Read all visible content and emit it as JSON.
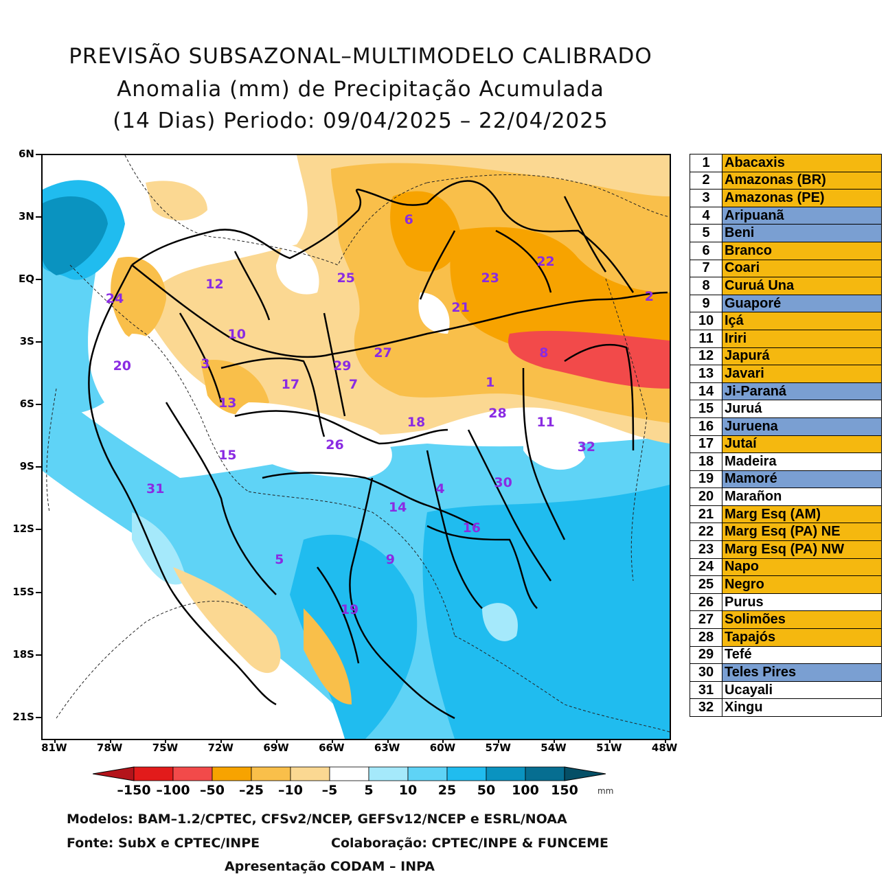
{
  "title": {
    "line1": "PREVISÃO SUBSAZONAL–MULTIMODELO CALIBRADO",
    "line2": "Anomalia (mm) de Precipitação Acumulada",
    "line3": "(14 Dias) Periodo: 09/04/2025 – 22/04/2025"
  },
  "axes": {
    "lat_labels": [
      "6N",
      "3N",
      "EQ",
      "3S",
      "6S",
      "9S",
      "12S",
      "15S",
      "18S",
      "21S"
    ],
    "lon_labels": [
      "81W",
      "78W",
      "75W",
      "72W",
      "69W",
      "66W",
      "63W",
      "60W",
      "57W",
      "54W",
      "51W",
      "48W"
    ]
  },
  "basin_labels": [
    {
      "num": "1",
      "lon": -57.5,
      "lat": -4.9
    },
    {
      "num": "2",
      "lon": -48.9,
      "lat": -0.8
    },
    {
      "num": "3",
      "lon": -72.9,
      "lat": -4.0
    },
    {
      "num": "4",
      "lon": -60.2,
      "lat": -10.0
    },
    {
      "num": "5",
      "lon": -68.9,
      "lat": -13.4
    },
    {
      "num": "6",
      "lon": -61.9,
      "lat": 2.9
    },
    {
      "num": "7",
      "lon": -64.9,
      "lat": -5.0
    },
    {
      "num": "8",
      "lon": -54.6,
      "lat": -3.5
    },
    {
      "num": "9",
      "lon": -62.9,
      "lat": -13.4
    },
    {
      "num": "10",
      "lon": -71.2,
      "lat": -2.6
    },
    {
      "num": "11",
      "lon": -54.5,
      "lat": -6.8
    },
    {
      "num": "12",
      "lon": -72.4,
      "lat": -0.2
    },
    {
      "num": "13",
      "lon": -71.7,
      "lat": -5.9
    },
    {
      "num": "14",
      "lon": -62.5,
      "lat": -10.9
    },
    {
      "num": "15",
      "lon": -71.7,
      "lat": -8.4
    },
    {
      "num": "16",
      "lon": -58.5,
      "lat": -11.9
    },
    {
      "num": "17",
      "lon": -68.3,
      "lat": -5.0
    },
    {
      "num": "18",
      "lon": -61.5,
      "lat": -6.8
    },
    {
      "num": "19",
      "lon": -65.1,
      "lat": -15.8
    },
    {
      "num": "20",
      "lon": -77.4,
      "lat": -4.1
    },
    {
      "num": "21",
      "lon": -59.1,
      "lat": -1.3
    },
    {
      "num": "22",
      "lon": -54.5,
      "lat": 0.9
    },
    {
      "num": "23",
      "lon": -57.5,
      "lat": 0.1
    },
    {
      "num": "24",
      "lon": -77.8,
      "lat": -0.9
    },
    {
      "num": "25",
      "lon": -65.3,
      "lat": 0.1
    },
    {
      "num": "26",
      "lon": -65.9,
      "lat": -7.9
    },
    {
      "num": "27",
      "lon": -63.3,
      "lat": -3.5
    },
    {
      "num": "28",
      "lon": -57.1,
      "lat": -6.4
    },
    {
      "num": "29",
      "lon": -65.5,
      "lat": -4.1
    },
    {
      "num": "30",
      "lon": -56.8,
      "lat": -9.7
    },
    {
      "num": "31",
      "lon": -75.6,
      "lat": -10.0
    },
    {
      "num": "32",
      "lon": -52.3,
      "lat": -8.0
    }
  ],
  "legend_table": [
    {
      "num": "1",
      "name": "Abacaxis",
      "color": "#f5b80f"
    },
    {
      "num": "2",
      "name": "Amazonas (BR)",
      "color": "#f5b80f"
    },
    {
      "num": "3",
      "name": "Amazonas (PE)",
      "color": "#f5b80f"
    },
    {
      "num": "4",
      "name": "Aripuanã",
      "color": "#7a9fd2"
    },
    {
      "num": "5",
      "name": "Beni",
      "color": "#7a9fd2"
    },
    {
      "num": "6",
      "name": "Branco",
      "color": "#f5b80f"
    },
    {
      "num": "7",
      "name": "Coari",
      "color": "#f5b80f"
    },
    {
      "num": "8",
      "name": "Curuá Una",
      "color": "#f5b80f"
    },
    {
      "num": "9",
      "name": "Guaporé",
      "color": "#7a9fd2"
    },
    {
      "num": "10",
      "name": "Içá",
      "color": "#f5b80f"
    },
    {
      "num": "11",
      "name": "Iriri",
      "color": "#f5b80f"
    },
    {
      "num": "12",
      "name": "Japurá",
      "color": "#f5b80f"
    },
    {
      "num": "13",
      "name": "Javari",
      "color": "#f5b80f"
    },
    {
      "num": "14",
      "name": "Ji-Paraná",
      "color": "#7a9fd2"
    },
    {
      "num": "15",
      "name": "Juruá",
      "color": "#ffffff"
    },
    {
      "num": "16",
      "name": "Juruena",
      "color": "#7a9fd2"
    },
    {
      "num": "17",
      "name": "Jutaí",
      "color": "#f5b80f"
    },
    {
      "num": "18",
      "name": "Madeira",
      "color": "#ffffff"
    },
    {
      "num": "19",
      "name": "Mamoré",
      "color": "#7a9fd2"
    },
    {
      "num": "20",
      "name": "Marañon",
      "color": "#ffffff"
    },
    {
      "num": "21",
      "name": "Marg Esq (AM)",
      "color": "#f5b80f"
    },
    {
      "num": "22",
      "name": "Marg Esq (PA) NE",
      "color": "#f5b80f"
    },
    {
      "num": "23",
      "name": "Marg Esq (PA) NW",
      "color": "#f5b80f"
    },
    {
      "num": "24",
      "name": "Napo",
      "color": "#f5b80f"
    },
    {
      "num": "25",
      "name": "Negro",
      "color": "#f5b80f"
    },
    {
      "num": "26",
      "name": "Purus",
      "color": "#ffffff"
    },
    {
      "num": "27",
      "name": "Solimões",
      "color": "#f5b80f"
    },
    {
      "num": "28",
      "name": "Tapajós",
      "color": "#f5b80f"
    },
    {
      "num": "29",
      "name": "Tefé",
      "color": "#ffffff"
    },
    {
      "num": "30",
      "name": "Teles Pires",
      "color": "#7a9fd2"
    },
    {
      "num": "31",
      "name": "Ucayali",
      "color": "#ffffff"
    },
    {
      "num": "32",
      "name": "Xingu",
      "color": "#ffffff"
    }
  ],
  "colorbar": {
    "labels": [
      "–150",
      "–100",
      "–50",
      "–25",
      "–10",
      "–5",
      "5",
      "10",
      "25",
      "50",
      "100",
      "150"
    ],
    "colors": [
      "#b3141b",
      "#e21b1b",
      "#f24a4a",
      "#f7a300",
      "#f9bf4a",
      "#fbd892",
      "#ffffff",
      "#a5e9fb",
      "#5fd3f6",
      "#20bcef",
      "#0a93c0",
      "#066e91",
      "#054f66"
    ],
    "unit": "mm"
  },
  "credits": {
    "models": "Modelos: BAM–1.2/CPTEC, CFSv2/NCEP, GEFSv12/NCEP e ESRL/NOAA",
    "source": "Fonte: SubX e CPTEC/INPE",
    "collab": "Colaboração: CPTEC/INPE & FUNCEME",
    "presentation": "Apresentação CODAM – INPA"
  }
}
